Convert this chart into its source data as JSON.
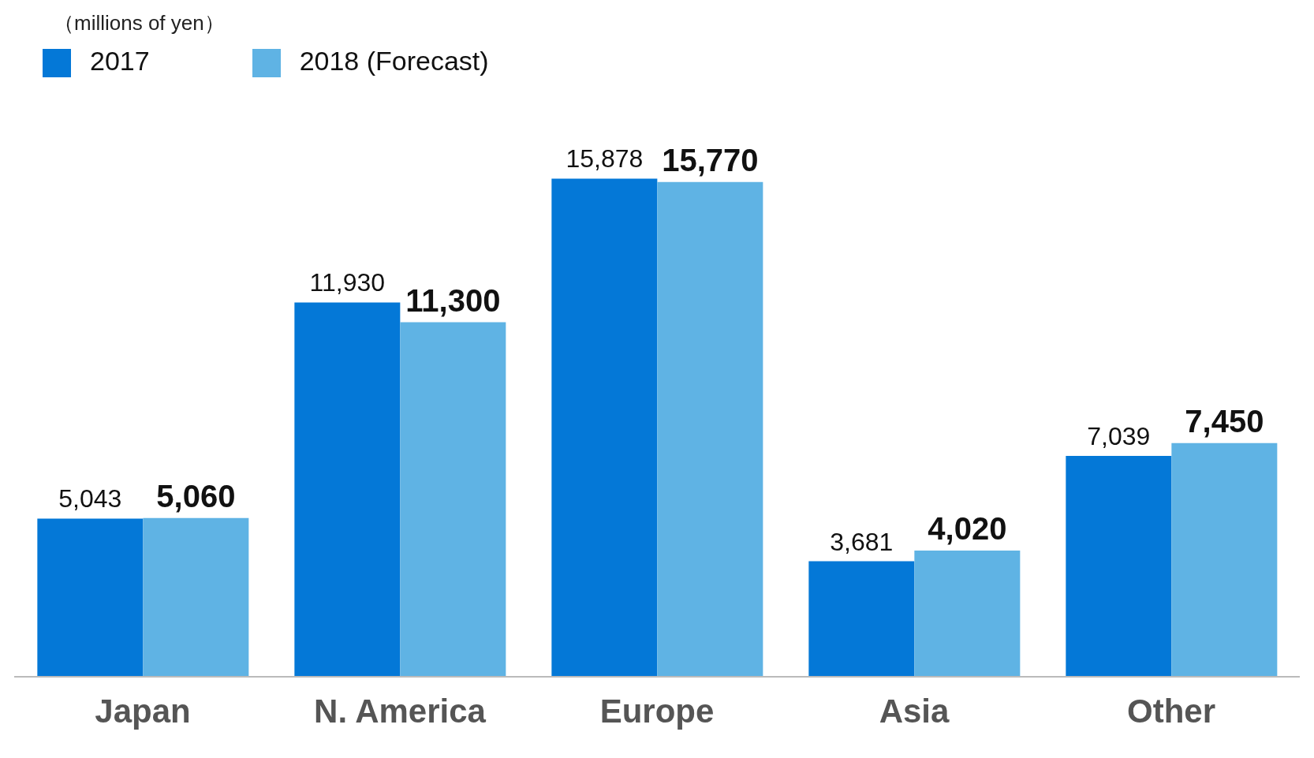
{
  "chart_data": {
    "type": "bar",
    "annotations": [
      "（millions of yen）"
    ],
    "categories": [
      "Japan",
      "N. America",
      "Europe",
      "Asia",
      "Other"
    ],
    "series": [
      {
        "name": "2017",
        "color": "#0478d7",
        "values": [
          5043,
          11930,
          15878,
          3681,
          7039
        ],
        "value_labels": [
          "5,043",
          "11,930",
          "15,878",
          "3,681",
          "7,039"
        ]
      },
      {
        "name": "2018 (Forecast)",
        "color": "#5fb3e4",
        "values": [
          5060,
          11300,
          15770,
          4020,
          7450
        ],
        "value_labels": [
          "5,060",
          "11,300",
          "15,770",
          "4,020",
          "7,450"
        ]
      }
    ],
    "legend": "top left",
    "grid": false
  }
}
